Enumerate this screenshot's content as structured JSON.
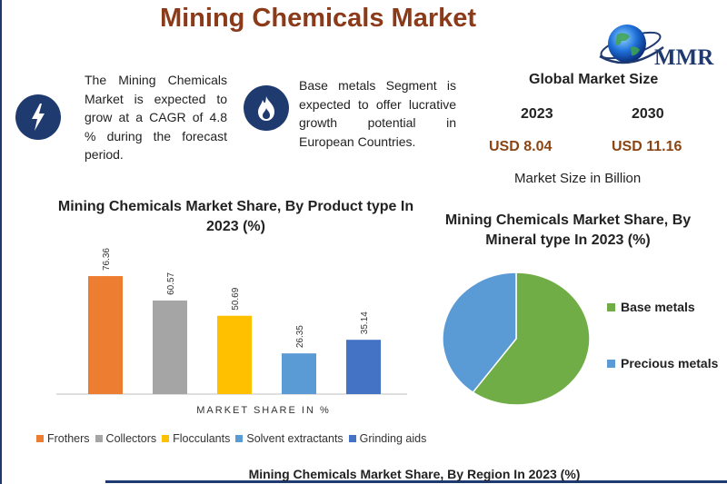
{
  "page": {
    "title": "Mining Chemicals Market",
    "logo_text": "MMR",
    "bottom_title": "Mining Chemicals Market Share, By Region In 2023 (%)"
  },
  "info": {
    "cagr_text": "The Mining Chemicals Market is expected to grow at a CAGR of 4.8 % during the forecast period.",
    "segment_text": "Base metals Segment is expected to offer lucrative growth potential in European Countries.",
    "cagr_icon": "lightning-icon",
    "segment_icon": "flame-icon"
  },
  "market_size": {
    "title": "Global Market Size",
    "year1": "2023",
    "year2": "2030",
    "value1": "USD 8.04",
    "value2": "USD 11.16",
    "note": "Market Size in Billion"
  },
  "colors": {
    "title": "#8b3a1a",
    "usd": "#8b4513",
    "navy": "#1f3a6e"
  },
  "chart_data": [
    {
      "type": "bar",
      "title": "Mining Chemicals Market Share, By Product type In 2023 (%)",
      "xlabel": "MARKET SHARE IN %",
      "ylabel": "",
      "categories": [
        "Frothers",
        "Collectors",
        "Flocculants",
        "Solvent extractants",
        "Grinding aids"
      ],
      "values": [
        76.36,
        60.57,
        50.69,
        26.35,
        35.14
      ],
      "value_labels": [
        "76.36",
        "60.57",
        "50.69",
        "26.35",
        "35.14"
      ],
      "colors": [
        "#ed7d31",
        "#a5a5a5",
        "#ffc000",
        "#5b9bd5",
        "#4472c4"
      ],
      "ylim": [
        0,
        100
      ],
      "grid": false,
      "legend": "bottom"
    },
    {
      "type": "pie",
      "title": "Mining Chemicals Market Share, By Mineral type In 2023 (%)",
      "labels": [
        "Base metals",
        "Precious metals"
      ],
      "values": [
        60,
        40
      ],
      "colors": [
        "#70ad47",
        "#5b9bd5"
      ],
      "legend": "right"
    }
  ]
}
